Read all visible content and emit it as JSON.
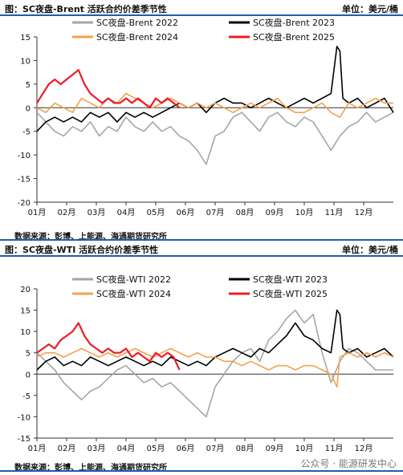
{
  "charts": [
    {
      "title": "图：SC夜盘-Brent 活跃合约价差季节性",
      "unit": "单位：美元/桶",
      "source": "数据来源：彭博、上能源、海通期货研究所"
    },
    {
      "title": "图：SC夜盘-WTI 活跃合约价差季节性",
      "unit": "单位：美元/桶",
      "source": "数据来源：彭博、上能源、海通期货研究所"
    }
  ],
  "footer": {
    "wechat": "公众号 · 能源研发中心"
  },
  "chart_data": [
    {
      "type": "line",
      "title": "SC夜盘-Brent 活跃合约价差季节性",
      "xlabel": "",
      "ylabel": "",
      "unit": "美元/桶",
      "ylim": [
        -20,
        15
      ],
      "yticks": [
        15,
        10,
        5,
        0,
        -5,
        -10,
        -15,
        -20
      ],
      "xlim": [
        0,
        12
      ],
      "categories": [
        "01月",
        "02月",
        "03月",
        "04月",
        "05月",
        "06月",
        "07月",
        "08月",
        "09月",
        "10月",
        "11月",
        "12月"
      ],
      "legend": "top",
      "series": [
        {
          "name": "SC夜盘-Brent 2022",
          "color": "#a6a6a6",
          "x": [
            0,
            0.3,
            0.6,
            0.9,
            1.2,
            1.5,
            1.8,
            2.1,
            2.4,
            2.7,
            3.0,
            3.3,
            3.6,
            3.9,
            4.2,
            4.5,
            4.8,
            5.1,
            5.4,
            5.7,
            6.0,
            6.3,
            6.6,
            6.9,
            7.2,
            7.5,
            7.8,
            8.1,
            8.4,
            8.7,
            9.0,
            9.3,
            9.6,
            9.9,
            10.2,
            10.5,
            10.8,
            11.1,
            11.4,
            11.7,
            12.0
          ],
          "y": [
            -1,
            -3,
            -5,
            -6,
            -4,
            -5,
            -3,
            -6,
            -4,
            -5,
            -2,
            -4,
            -5,
            -3,
            -5,
            -4,
            -6,
            -7,
            -9,
            -12,
            -6,
            -5,
            -2,
            -1,
            -3,
            -5,
            -2,
            -1,
            -3,
            -4,
            -2,
            -3,
            -6,
            -9,
            -6,
            -4,
            -3,
            -1,
            -3,
            -2,
            -1
          ]
        },
        {
          "name": "SC夜盘-Brent 2023",
          "color": "#000000",
          "x": [
            0,
            0.3,
            0.6,
            0.9,
            1.2,
            1.5,
            1.8,
            2.1,
            2.4,
            2.7,
            3.0,
            3.3,
            3.6,
            3.9,
            4.2,
            4.5,
            4.8,
            5.1,
            5.4,
            5.7,
            6.0,
            6.3,
            6.6,
            6.9,
            7.2,
            7.5,
            7.8,
            8.1,
            8.4,
            8.7,
            9.0,
            9.3,
            9.6,
            9.9,
            10.1,
            10.2,
            10.3,
            10.5,
            10.8,
            11.1,
            11.4,
            11.7,
            12.0
          ],
          "y": [
            -5,
            -3,
            -2,
            -3,
            -2,
            -3,
            -1,
            -2,
            -1,
            -3,
            -1,
            -2,
            -1,
            -2,
            -1,
            0,
            1,
            0,
            1,
            -1,
            1,
            2,
            1,
            1,
            0,
            1,
            2,
            1,
            0,
            1,
            2,
            1,
            2,
            3,
            13,
            12,
            2,
            1,
            2,
            0,
            1,
            2,
            -1
          ]
        },
        {
          "name": "SC夜盘-Brent 2024",
          "color": "#f4a14a",
          "x": [
            0,
            0.3,
            0.6,
            0.9,
            1.2,
            1.5,
            1.8,
            2.1,
            2.4,
            2.7,
            3.0,
            3.3,
            3.6,
            3.9,
            4.2,
            4.5,
            4.8,
            5.1,
            5.4,
            5.7,
            6.0,
            6.3,
            6.6,
            6.9,
            7.2,
            7.5,
            7.8,
            8.1,
            8.4,
            8.7,
            9.0,
            9.3,
            9.6,
            9.9,
            10.2,
            10.5,
            10.8,
            11.1,
            11.4,
            11.7,
            12.0
          ],
          "y": [
            0,
            -1,
            1,
            0,
            -1,
            2,
            1,
            0,
            2,
            1,
            3,
            2,
            1,
            0,
            1,
            2,
            1,
            0,
            1,
            0,
            1,
            0,
            -1,
            0,
            1,
            0,
            1,
            2,
            0,
            -1,
            -1,
            0,
            1,
            -1,
            -2,
            1,
            0,
            1,
            2,
            1,
            1
          ]
        },
        {
          "name": "SC夜盘-Brent 2025",
          "color": "#ee1c25",
          "x": [
            0,
            0.2,
            0.4,
            0.6,
            0.8,
            1.0,
            1.2,
            1.4,
            1.6,
            1.8,
            2.0,
            2.2,
            2.4,
            2.6,
            2.8,
            3.0,
            3.2,
            3.4,
            3.6,
            3.8,
            4.0,
            4.2,
            4.4,
            4.6,
            4.8
          ],
          "y": [
            1,
            3,
            5,
            6,
            5,
            6,
            7,
            8,
            5,
            3,
            2,
            1,
            2,
            1,
            1,
            2,
            1,
            2,
            1,
            0,
            2,
            1,
            2,
            1,
            0
          ]
        }
      ]
    },
    {
      "type": "line",
      "title": "SC夜盘-WTI 活跃合约价差季节性",
      "xlabel": "",
      "ylabel": "",
      "unit": "美元/桶",
      "ylim": [
        -15,
        20
      ],
      "yticks": [
        20,
        15,
        10,
        5,
        0,
        -5,
        -10,
        -15
      ],
      "xlim": [
        0,
        12
      ],
      "categories": [
        "01月",
        "02月",
        "03月",
        "04月",
        "05月",
        "06月",
        "07月",
        "08月",
        "09月",
        "10月",
        "11月",
        "12月"
      ],
      "legend": "top",
      "series": [
        {
          "name": "SC夜盘-WTI 2022",
          "color": "#a6a6a6",
          "x": [
            0,
            0.3,
            0.6,
            0.9,
            1.2,
            1.5,
            1.8,
            2.1,
            2.4,
            2.7,
            3.0,
            3.3,
            3.6,
            3.9,
            4.2,
            4.5,
            4.8,
            5.1,
            5.4,
            5.7,
            6.0,
            6.3,
            6.6,
            6.9,
            7.2,
            7.5,
            7.8,
            8.1,
            8.4,
            8.7,
            9.0,
            9.3,
            9.6,
            9.9,
            10.2,
            10.5,
            10.8,
            11.1,
            11.4,
            11.7,
            12.0
          ],
          "y": [
            5,
            3,
            1,
            -2,
            -4,
            -6,
            -4,
            -3,
            -1,
            1,
            2,
            0,
            -2,
            -1,
            -3,
            -2,
            -4,
            -6,
            -8,
            -10,
            -3,
            0,
            3,
            5,
            6,
            3,
            8,
            10,
            13,
            15,
            12,
            14,
            5,
            -2,
            3,
            6,
            5,
            3,
            1,
            1,
            1
          ]
        },
        {
          "name": "SC夜盘-WTI 2023",
          "color": "#000000",
          "x": [
            0,
            0.3,
            0.6,
            0.9,
            1.2,
            1.5,
            1.8,
            2.1,
            2.4,
            2.7,
            3.0,
            3.3,
            3.6,
            3.9,
            4.2,
            4.5,
            4.8,
            5.1,
            5.4,
            5.7,
            6.0,
            6.3,
            6.6,
            6.9,
            7.2,
            7.5,
            7.8,
            8.1,
            8.4,
            8.7,
            9.0,
            9.3,
            9.6,
            9.9,
            10.1,
            10.2,
            10.3,
            10.5,
            10.8,
            11.1,
            11.4,
            11.7,
            12.0
          ],
          "y": [
            1,
            3,
            4,
            2,
            3,
            2,
            4,
            3,
            2,
            3,
            4,
            3,
            2,
            3,
            2,
            4,
            3,
            2,
            3,
            2,
            4,
            5,
            6,
            5,
            4,
            6,
            5,
            7,
            9,
            12,
            9,
            8,
            6,
            5,
            15,
            14,
            6,
            5,
            6,
            4,
            5,
            6,
            4
          ]
        },
        {
          "name": "SC夜盘-WTI 2024",
          "color": "#f4a14a",
          "x": [
            0,
            0.3,
            0.6,
            0.9,
            1.2,
            1.5,
            1.8,
            2.1,
            2.4,
            2.7,
            3.0,
            3.3,
            3.6,
            3.9,
            4.2,
            4.5,
            4.8,
            5.1,
            5.4,
            5.7,
            6.0,
            6.3,
            6.6,
            6.9,
            7.2,
            7.5,
            7.8,
            8.1,
            8.4,
            8.7,
            9.0,
            9.3,
            9.6,
            9.9,
            10.1,
            10.2,
            10.5,
            10.8,
            11.1,
            11.4,
            11.7,
            12.0
          ],
          "y": [
            4,
            5,
            5,
            4,
            5,
            6,
            5,
            4,
            5,
            4,
            5,
            6,
            5,
            4,
            5,
            6,
            5,
            4,
            5,
            4,
            4,
            3,
            3,
            2,
            3,
            2,
            1,
            2,
            2,
            1,
            2,
            2,
            1,
            0,
            -3,
            4,
            5,
            4,
            5,
            4,
            5,
            4
          ]
        },
        {
          "name": "SC夜盘-WTI 2025",
          "color": "#ee1c25",
          "x": [
            0,
            0.2,
            0.4,
            0.6,
            0.8,
            1.0,
            1.2,
            1.4,
            1.6,
            1.8,
            2.0,
            2.2,
            2.4,
            2.6,
            2.8,
            3.0,
            3.2,
            3.4,
            3.6,
            3.8,
            4.0,
            4.2,
            4.4,
            4.6,
            4.8
          ],
          "y": [
            5,
            6,
            7,
            6,
            8,
            9,
            10,
            12,
            9,
            7,
            6,
            5,
            6,
            5,
            5,
            6,
            4,
            5,
            4,
            3,
            5,
            4,
            5,
            4,
            1
          ]
        }
      ]
    }
  ]
}
